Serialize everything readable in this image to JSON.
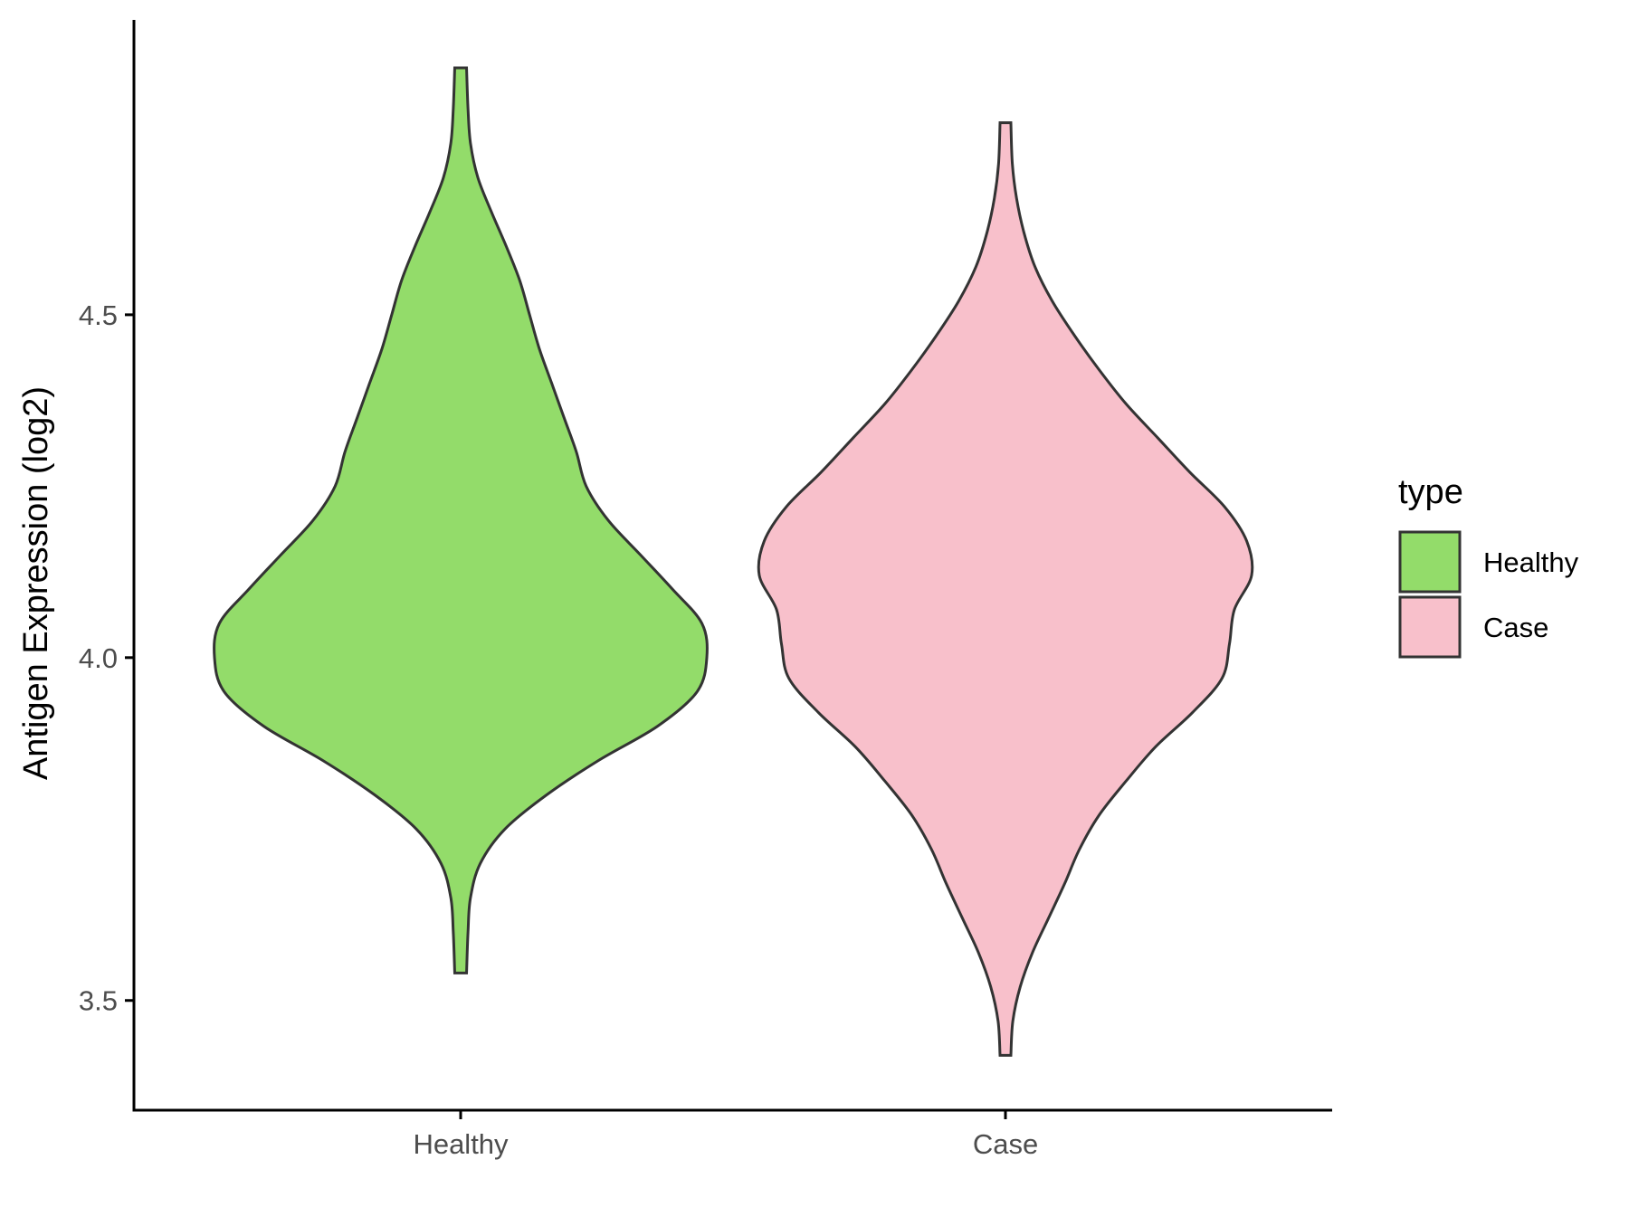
{
  "chart_data": {
    "type": "violin",
    "title": "",
    "xlabel": "",
    "ylabel": "Antigen Expression (log2)",
    "categories": [
      "Healthy",
      "Case"
    ],
    "ylim": [
      3.34,
      4.93
    ],
    "y_ticks": [
      3.5,
      4.0,
      4.5
    ],
    "y_tick_labels": [
      "3.5",
      "4.0",
      "4.5"
    ],
    "grid": false,
    "legend": {
      "title": "type",
      "placement": "right",
      "entries": [
        {
          "label": "Healthy",
          "color": "#93DC6A"
        },
        {
          "label": "Case",
          "color": "#F8C0CB"
        }
      ]
    },
    "series": [
      {
        "category": "Healthy",
        "color": "#93DC6A",
        "min": 3.54,
        "max": 4.86,
        "profile": [
          [
            3.54,
            0.024
          ],
          [
            3.6,
            0.03
          ],
          [
            3.65,
            0.04
          ],
          [
            3.7,
            0.08
          ],
          [
            3.75,
            0.18
          ],
          [
            3.8,
            0.35
          ],
          [
            3.85,
            0.56
          ],
          [
            3.9,
            0.8
          ],
          [
            3.95,
            0.96
          ],
          [
            4.0,
            1.0
          ],
          [
            4.05,
            0.98
          ],
          [
            4.1,
            0.86
          ],
          [
            4.15,
            0.73
          ],
          [
            4.2,
            0.6
          ],
          [
            4.25,
            0.51
          ],
          [
            4.3,
            0.47
          ],
          [
            4.35,
            0.42
          ],
          [
            4.4,
            0.37
          ],
          [
            4.45,
            0.32
          ],
          [
            4.5,
            0.28
          ],
          [
            4.55,
            0.24
          ],
          [
            4.6,
            0.185
          ],
          [
            4.65,
            0.125
          ],
          [
            4.7,
            0.07
          ],
          [
            4.75,
            0.04
          ],
          [
            4.8,
            0.03
          ],
          [
            4.86,
            0.024
          ]
        ]
      },
      {
        "category": "Case",
        "color": "#F8C0CB",
        "min": 3.42,
        "max": 4.78,
        "profile": [
          [
            3.42,
            0.022
          ],
          [
            3.47,
            0.03
          ],
          [
            3.52,
            0.06
          ],
          [
            3.57,
            0.11
          ],
          [
            3.62,
            0.175
          ],
          [
            3.67,
            0.24
          ],
          [
            3.72,
            0.3
          ],
          [
            3.77,
            0.38
          ],
          [
            3.82,
            0.49
          ],
          [
            3.87,
            0.61
          ],
          [
            3.92,
            0.76
          ],
          [
            3.97,
            0.88
          ],
          [
            4.02,
            0.91
          ],
          [
            4.07,
            0.93
          ],
          [
            4.12,
            1.0
          ],
          [
            4.17,
            0.98
          ],
          [
            4.22,
            0.89
          ],
          [
            4.27,
            0.75
          ],
          [
            4.32,
            0.62
          ],
          [
            4.37,
            0.49
          ],
          [
            4.42,
            0.38
          ],
          [
            4.47,
            0.28
          ],
          [
            4.52,
            0.19
          ],
          [
            4.57,
            0.12
          ],
          [
            4.62,
            0.075
          ],
          [
            4.67,
            0.045
          ],
          [
            4.72,
            0.028
          ],
          [
            4.78,
            0.022
          ]
        ]
      }
    ]
  }
}
